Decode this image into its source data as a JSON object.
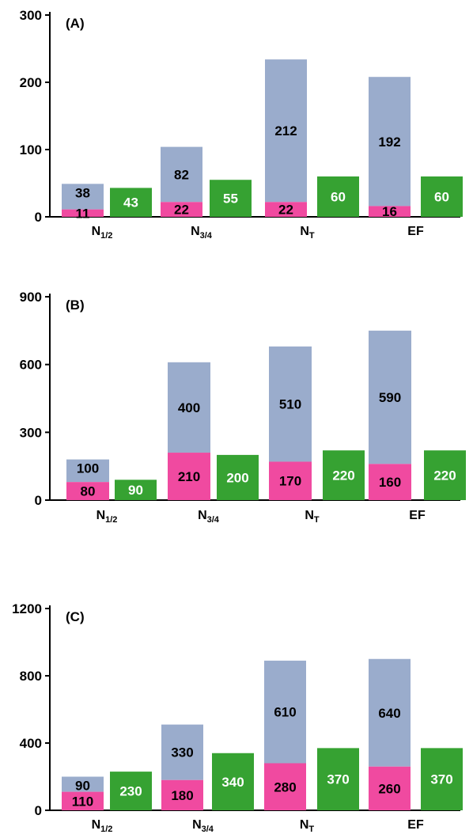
{
  "colors": {
    "upper": "#9aaccc",
    "lower": "#f04aa0",
    "single": "#36a232",
    "label_dark": "#000000",
    "label_light": "#ffffff"
  },
  "chart_data": [
    {
      "type": "bar",
      "title": "(A)",
      "categories": [
        {
          "main": "N",
          "sub": "1/2"
        },
        {
          "main": "N",
          "sub": "3/4"
        },
        {
          "main": "N",
          "sub": "T"
        },
        {
          "main": "EF",
          "sub": ""
        }
      ],
      "stacked_lower": [
        11,
        22,
        22,
        16
      ],
      "stacked_upper": [
        38,
        82,
        212,
        192
      ],
      "single": [
        43,
        55,
        60,
        60
      ],
      "ylim": [
        0,
        300
      ],
      "yticks": [
        "0",
        "100",
        "200",
        "300"
      ],
      "grid": false,
      "legend": "none"
    },
    {
      "type": "bar",
      "title": "(B)",
      "categories": [
        {
          "main": "N",
          "sub": "1/2"
        },
        {
          "main": "N",
          "sub": "3/4"
        },
        {
          "main": "N",
          "sub": "T"
        },
        {
          "main": "EF",
          "sub": ""
        }
      ],
      "stacked_lower": [
        80,
        210,
        170,
        160
      ],
      "stacked_upper": [
        100,
        400,
        510,
        590
      ],
      "single": [
        90,
        200,
        220,
        220
      ],
      "ylim": [
        0,
        900
      ],
      "yticks": [
        "0",
        "300",
        "600",
        "900"
      ],
      "grid": false,
      "legend": "none"
    },
    {
      "type": "bar",
      "title": "(C)",
      "categories": [
        {
          "main": "N",
          "sub": "1/2"
        },
        {
          "main": "N",
          "sub": "3/4"
        },
        {
          "main": "N",
          "sub": "T"
        },
        {
          "main": "EF",
          "sub": ""
        }
      ],
      "stacked_lower": [
        110,
        180,
        280,
        260
      ],
      "stacked_upper": [
        90,
        330,
        610,
        640
      ],
      "single": [
        230,
        340,
        370,
        370
      ],
      "ylim": [
        0,
        1200
      ],
      "yticks": [
        "0",
        "400",
        "800",
        "1200"
      ],
      "grid": false,
      "legend": "none"
    }
  ]
}
